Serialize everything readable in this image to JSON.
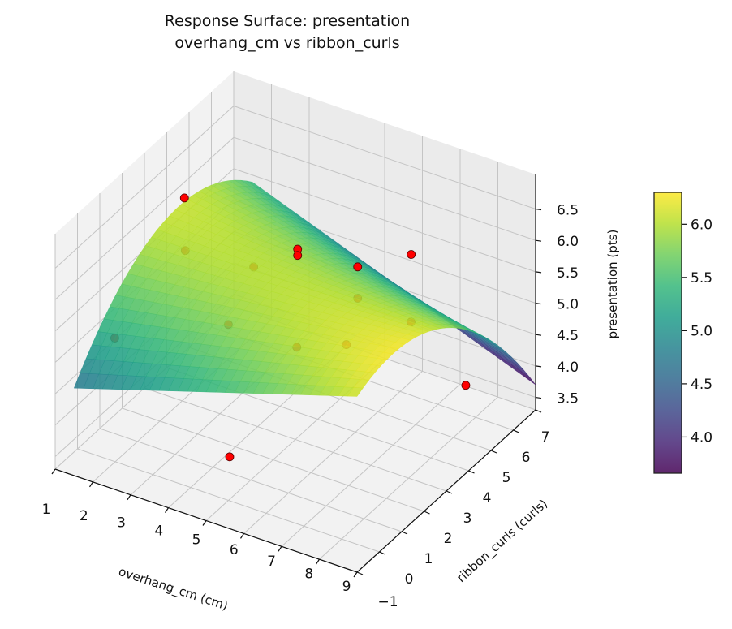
{
  "chart_data": {
    "type": "surface3d",
    "title": "Response Surface: presentation\noverhang_cm vs ribbon_curls",
    "title_lines": [
      "Response Surface: presentation",
      "overhang_cm vs ribbon_curls"
    ],
    "xlabel": "overhang_cm (cm)",
    "ylabel": "ribbon_curls (curls)",
    "zlabel": "presentation (pts)",
    "xlim": [
      1,
      9
    ],
    "ylim": [
      -1,
      7
    ],
    "zlim": [
      3.3,
      7.05
    ],
    "xticks": [
      "1",
      "2",
      "3",
      "4",
      "5",
      "6",
      "7",
      "8",
      "9"
    ],
    "yticks": [
      "−1",
      "0",
      "1",
      "2",
      "3",
      "4",
      "5",
      "6",
      "7"
    ],
    "zticks": [
      "3.5",
      "4.0",
      "4.5",
      "5.0",
      "5.5",
      "6.0",
      "6.5"
    ],
    "grid": true,
    "colormap": "viridis",
    "colorbar": {
      "range": [
        3.66,
        6.3
      ],
      "ticks": [
        "4.0",
        "4.5",
        "5.0",
        "5.5",
        "6.0"
      ],
      "placement": "right"
    },
    "surface_corners": {
      "x1_ym1": 4.6,
      "x9_ym1": 6.1,
      "x9_y7": 3.7,
      "x1_y7": 5.5,
      "ridge_height": 1.0
    },
    "points": [
      {
        "x": 2.0,
        "y": 3.1,
        "z": 6.5
      },
      {
        "x": 2.2,
        "y": 2.8,
        "z": 5.8
      },
      {
        "x": 3.6,
        "y": 3.5,
        "z": 5.6
      },
      {
        "x": 5.0,
        "y": 3.1,
        "z": 6.3
      },
      {
        "x": 5.0,
        "y": 3.1,
        "z": 6.2
      },
      {
        "x": 6.0,
        "y": 4.1,
        "z": 5.9
      },
      {
        "x": 7.3,
        "y": 4.3,
        "z": 6.3
      },
      {
        "x": 6.0,
        "y": 4.1,
        "z": 5.4
      },
      {
        "x": 3.4,
        "y": 2.7,
        "z": 4.9
      },
      {
        "x": 1.1,
        "y": 1.5,
        "z": 4.6
      },
      {
        "x": 4.8,
        "y": 3.4,
        "z": 4.6
      },
      {
        "x": 5.7,
        "y": 4.1,
        "z": 4.6
      },
      {
        "x": 7.0,
        "y": 4.8,
        "z": 5.0
      },
      {
        "x": 7.8,
        "y": 5.9,
        "z": 3.8
      },
      {
        "x": 4.5,
        "y": 0.9,
        "z": 3.6
      }
    ],
    "point_color": "#ff0000"
  }
}
